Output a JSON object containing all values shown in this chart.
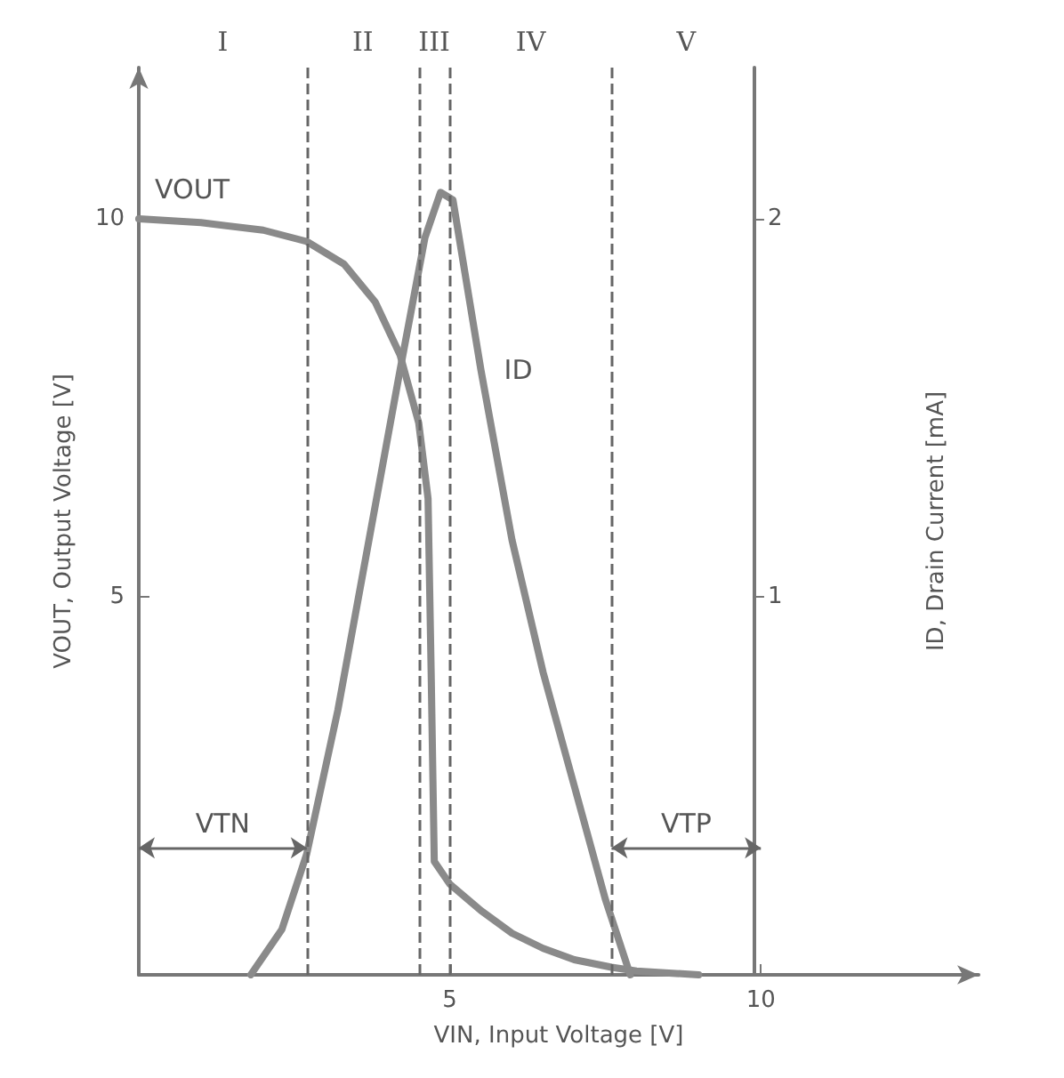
{
  "chart_data": {
    "type": "line",
    "xlabel": "VIN, Input Voltage [V]",
    "ylabel": "VOUT, Output Voltage [V]",
    "y2label": "ID, Drain Current [mA]",
    "xlim": [
      0,
      13.5
    ],
    "xticks": [
      5,
      10
    ],
    "ylim": [
      0,
      12
    ],
    "yticks": [
      5,
      10
    ],
    "y2lim": [
      0,
      2.4
    ],
    "y2ticks": [
      1,
      2
    ],
    "series": [
      {
        "name": "VOUT",
        "color": "#8a8a8a",
        "x": [
          0,
          1,
          2,
          2.7,
          3.3,
          3.8,
          4.2,
          4.5,
          4.65,
          4.7,
          4.75,
          5.0,
          5.5,
          6,
          6.5,
          7,
          7.6,
          8,
          9
        ],
        "values": [
          10,
          9.95,
          9.85,
          9.7,
          9.4,
          8.9,
          8.2,
          7.3,
          6.3,
          4,
          1.5,
          1.2,
          0.85,
          0.55,
          0.35,
          0.2,
          0.1,
          0.05,
          0
        ]
      },
      {
        "name": "ID",
        "color": "#8a8a8a",
        "axis": "y2",
        "x": [
          1.8,
          2.3,
          2.7,
          3.2,
          3.7,
          4.2,
          4.6,
          4.85,
          5.05,
          5.5,
          6,
          6.5,
          7,
          7.5,
          7.9
        ],
        "values": [
          0,
          0.12,
          0.32,
          0.7,
          1.15,
          1.6,
          1.95,
          2.07,
          2.05,
          1.6,
          1.15,
          0.8,
          0.5,
          0.2,
          0
        ]
      }
    ],
    "ref_lines": [
      {
        "axis": "x",
        "value": 2.7,
        "line_style": "dashed"
      },
      {
        "axis": "x",
        "value": 4.5,
        "line_style": "dashed"
      },
      {
        "axis": "x",
        "value": 5.0,
        "line_style": "dashed"
      },
      {
        "axis": "x",
        "value": 7.6,
        "line_style": "dashed"
      }
    ],
    "annotations": [
      "I",
      "II",
      "III",
      "IV",
      "V",
      "VTN",
      "VTP"
    ],
    "grid": false,
    "legend": false,
    "marker": "none",
    "line_style": "solid"
  }
}
